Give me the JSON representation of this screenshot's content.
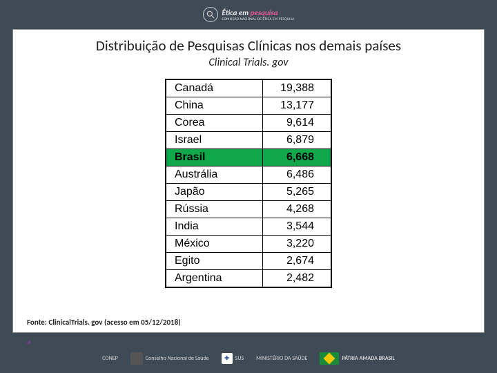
{
  "header": {
    "logo_text_line1": "Ética em",
    "logo_text_line2": "pesquisa",
    "logo_subtext": "COMISSÃO NACIONAL DE ÉTICA EM PESQUISA"
  },
  "title": "Distribuição de Pesquisas Clínicas nos demais países",
  "subtitle": "Clinical Trials. gov",
  "table": {
    "highlight_color": "#0fa84a",
    "border_color": "#000000",
    "font_size": 16,
    "rows": [
      {
        "country": "Canadá",
        "value": "19,388",
        "highlight": false
      },
      {
        "country": "China",
        "value": "13,177",
        "highlight": false
      },
      {
        "country": "Corea",
        "value": "9,614",
        "highlight": false
      },
      {
        "country": "Israel",
        "value": "6,879",
        "highlight": false
      },
      {
        "country": "Brasil",
        "value": "6,668",
        "highlight": true
      },
      {
        "country": "Austrália",
        "value": "6,486",
        "highlight": false
      },
      {
        "country": "Japão",
        "value": "5,265",
        "highlight": false
      },
      {
        "country": "Rússia",
        "value": "4,268",
        "highlight": false
      },
      {
        "country": "India",
        "value": "3,544",
        "highlight": false
      },
      {
        "country": "México",
        "value": "3,220",
        "highlight": false
      },
      {
        "country": "Egito",
        "value": "2,674",
        "highlight": false
      },
      {
        "country": "Argentina",
        "value": "2,482",
        "highlight": false
      }
    ]
  },
  "source": "Fonte: ClinicalTrials. gov (acesso em 05/12/2018)",
  "footer": {
    "labels": [
      "CONEP",
      "Conselho Nacional de Saúde",
      "SUS",
      "MINISTÉRIO DA SAÚDE",
      "PÁTRIA AMADA BRASIL"
    ]
  },
  "colors": {
    "frame_bg": "#ffffff",
    "page_bg": "#3e4a56",
    "tri1": "#7a3d8f",
    "tri2": "#d14b8a",
    "tri3": "#4aa8d8"
  }
}
